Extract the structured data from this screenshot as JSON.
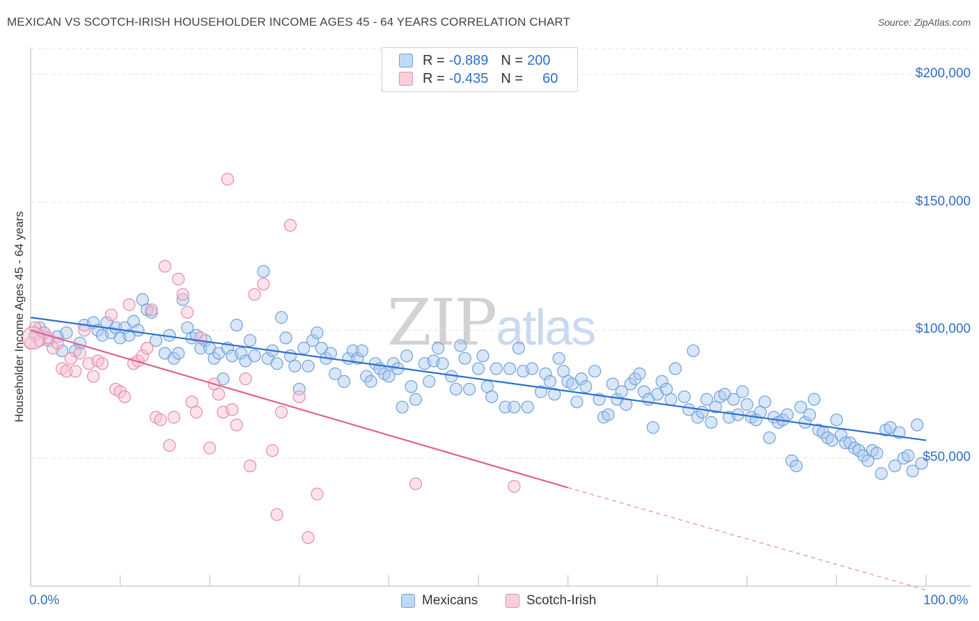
{
  "title": "MEXICAN VS SCOTCH-IRISH HOUSEHOLDER INCOME AGES 45 - 64 YEARS CORRELATION CHART",
  "source": "Source: ZipAtlas.com",
  "watermark": {
    "zip": "ZIP",
    "atlas": "atlas"
  },
  "legend": {
    "rows": [
      {
        "r_label": "R = ",
        "r_value": "-0.889",
        "n_label": "N = ",
        "n_value": "200",
        "color": "#a8c8f0",
        "border": "#6fa0dc"
      },
      {
        "r_label": "R = ",
        "r_value": "-0.435",
        "n_label": "N = ",
        "n_value": "60",
        "color": "#f6c2d2",
        "border": "#e88aa8"
      }
    ]
  },
  "bottom_legend": [
    {
      "label": "Mexicans",
      "color": "#a8c8f0",
      "border": "#6fa0dc"
    },
    {
      "label": "Scotch-Irish",
      "color": "#f6c2d2",
      "border": "#e88aa8"
    }
  ],
  "chart_data": {
    "type": "scatter",
    "ylabel": "Householder Income Ages 45 - 64 years",
    "xlabel": "",
    "xlim": [
      0,
      100
    ],
    "ylim": [
      0,
      210000
    ],
    "x_tick_labels": [
      "0.0%",
      "100.0%"
    ],
    "y_ticks": [
      50000,
      100000,
      150000,
      200000
    ],
    "y_tick_labels": [
      "$50,000",
      "$100,000",
      "$150,000",
      "$200,000"
    ],
    "grid": "dashed horizontal",
    "legend_position": "top-center",
    "series": [
      {
        "name": "Mexicans",
        "color": "#6fa0dc",
        "fill": "rgba(168,200,240,0.45)",
        "trend": {
          "x0": 0,
          "y0": 105000,
          "x1": 100,
          "y1": 57000,
          "dashed_after": null
        },
        "points": [
          [
            0.5,
            98000
          ],
          [
            1,
            101000
          ],
          [
            1.5,
            99000
          ],
          [
            2,
            96000
          ],
          [
            3,
            97500
          ],
          [
            3.5,
            92000
          ],
          [
            4,
            99000
          ],
          [
            5,
            92000
          ],
          [
            5.5,
            95000
          ],
          [
            6,
            102000
          ],
          [
            7,
            103000
          ],
          [
            7.5,
            100000
          ],
          [
            8,
            98000
          ],
          [
            8.5,
            103000
          ],
          [
            9,
            99000
          ],
          [
            9.5,
            101000
          ],
          [
            10,
            97000
          ],
          [
            10.5,
            101000
          ],
          [
            11,
            98000
          ],
          [
            11.5,
            103500
          ],
          [
            12,
            100000
          ],
          [
            12.5,
            112000
          ],
          [
            13,
            108000
          ],
          [
            13.5,
            107000
          ],
          [
            14,
            96000
          ],
          [
            15,
            91000
          ],
          [
            15.5,
            98000
          ],
          [
            16,
            89000
          ],
          [
            16.5,
            91000
          ],
          [
            17,
            112000
          ],
          [
            17.5,
            101000
          ],
          [
            18,
            97000
          ],
          [
            18.5,
            98000
          ],
          [
            19,
            93000
          ],
          [
            19.5,
            96000
          ],
          [
            20,
            93000
          ],
          [
            20.5,
            89000
          ],
          [
            21,
            91000
          ],
          [
            21.5,
            81000
          ],
          [
            22,
            93000
          ],
          [
            22.5,
            90000
          ],
          [
            23,
            102000
          ],
          [
            23.5,
            91000
          ],
          [
            24,
            88000
          ],
          [
            24.5,
            96000
          ],
          [
            25,
            90000
          ],
          [
            26,
            123000
          ],
          [
            26.5,
            89000
          ],
          [
            27,
            92000
          ],
          [
            27.5,
            87000
          ],
          [
            28,
            105000
          ],
          [
            28.5,
            97000
          ],
          [
            29,
            90000
          ],
          [
            29.5,
            86000
          ],
          [
            30,
            77000
          ],
          [
            30.5,
            93000
          ],
          [
            31,
            86000
          ],
          [
            31.5,
            96000
          ],
          [
            32,
            99000
          ],
          [
            32.5,
            93000
          ],
          [
            33,
            89000
          ],
          [
            33.5,
            91000
          ],
          [
            34,
            83000
          ],
          [
            35,
            80000
          ],
          [
            35.5,
            89000
          ],
          [
            36,
            92000
          ],
          [
            36.5,
            89000
          ],
          [
            37,
            92000
          ],
          [
            37.5,
            82000
          ],
          [
            38,
            80000
          ],
          [
            38.5,
            87000
          ],
          [
            39,
            85000
          ],
          [
            39.5,
            83000
          ],
          [
            40,
            82000
          ],
          [
            40.5,
            87000
          ],
          [
            41,
            85000
          ],
          [
            41.5,
            70000
          ],
          [
            42,
            90000
          ],
          [
            42.5,
            78000
          ],
          [
            43,
            73000
          ],
          [
            44,
            87000
          ],
          [
            44.5,
            80000
          ],
          [
            45,
            88000
          ],
          [
            45.5,
            93000
          ],
          [
            46,
            87000
          ],
          [
            47,
            82000
          ],
          [
            47.5,
            77000
          ],
          [
            48,
            94000
          ],
          [
            48.5,
            89000
          ],
          [
            49,
            77000
          ],
          [
            50,
            85000
          ],
          [
            50.5,
            90000
          ],
          [
            51,
            78000
          ],
          [
            51.5,
            74000
          ],
          [
            52,
            85000
          ],
          [
            53,
            70000
          ],
          [
            53.5,
            85000
          ],
          [
            54,
            70000
          ],
          [
            54.5,
            93000
          ],
          [
            55,
            84000
          ],
          [
            55.5,
            70000
          ],
          [
            56,
            85000
          ],
          [
            57,
            76000
          ],
          [
            57.5,
            83000
          ],
          [
            58,
            80000
          ],
          [
            58.5,
            75000
          ],
          [
            59,
            89000
          ],
          [
            59.5,
            84000
          ],
          [
            60,
            80000
          ],
          [
            60.5,
            79000
          ],
          [
            61,
            72000
          ],
          [
            61.5,
            81000
          ],
          [
            62,
            78000
          ],
          [
            63,
            84000
          ],
          [
            63.5,
            73000
          ],
          [
            64,
            66000
          ],
          [
            64.5,
            67000
          ],
          [
            65,
            79000
          ],
          [
            65.5,
            73000
          ],
          [
            66,
            76000
          ],
          [
            66.5,
            71000
          ],
          [
            67,
            79000
          ],
          [
            67.5,
            81000
          ],
          [
            68,
            83000
          ],
          [
            68.5,
            76000
          ],
          [
            69,
            73000
          ],
          [
            69.5,
            62000
          ],
          [
            70,
            75000
          ],
          [
            70.5,
            80000
          ],
          [
            71,
            77000
          ],
          [
            71.5,
            73000
          ],
          [
            72,
            85000
          ],
          [
            73,
            74000
          ],
          [
            73.5,
            69000
          ],
          [
            74,
            92000
          ],
          [
            74.5,
            66000
          ],
          [
            75,
            68000
          ],
          [
            75.5,
            73000
          ],
          [
            76,
            64000
          ],
          [
            76.5,
            70000
          ],
          [
            77,
            74000
          ],
          [
            77.5,
            75000
          ],
          [
            78,
            66000
          ],
          [
            78.5,
            73000
          ],
          [
            79,
            67000
          ],
          [
            79.5,
            76000
          ],
          [
            80,
            71000
          ],
          [
            80.5,
            66000
          ],
          [
            81,
            65000
          ],
          [
            81.5,
            68000
          ],
          [
            82,
            72000
          ],
          [
            82.5,
            58000
          ],
          [
            83,
            66000
          ],
          [
            83.5,
            64000
          ],
          [
            84,
            65000
          ],
          [
            84.5,
            67000
          ],
          [
            85,
            49000
          ],
          [
            85.5,
            47000
          ],
          [
            86,
            70000
          ],
          [
            86.5,
            64000
          ],
          [
            87,
            67000
          ],
          [
            87.5,
            73000
          ],
          [
            88,
            61000
          ],
          [
            88.5,
            60000
          ],
          [
            89,
            58000
          ],
          [
            89.5,
            57000
          ],
          [
            90,
            65000
          ],
          [
            90.5,
            59000
          ],
          [
            91,
            56000
          ],
          [
            91.5,
            56000
          ],
          [
            92,
            54000
          ],
          [
            92.5,
            53000
          ],
          [
            93,
            51000
          ],
          [
            93.5,
            49000
          ],
          [
            94,
            53000
          ],
          [
            94.5,
            52000
          ],
          [
            95,
            44000
          ],
          [
            95.5,
            61000
          ],
          [
            96,
            62000
          ],
          [
            96.5,
            47000
          ],
          [
            97,
            60000
          ],
          [
            97.5,
            50000
          ],
          [
            98,
            51000
          ],
          [
            98.5,
            45000
          ],
          [
            99,
            63000
          ],
          [
            99.5,
            48000
          ]
        ]
      },
      {
        "name": "Scotch-Irish",
        "color": "#e88aa8",
        "fill": "rgba(246,194,210,0.45)",
        "trend": {
          "x0": 0,
          "y0": 100000,
          "x1": 60,
          "y1": 38500,
          "dashed_to_x": 100,
          "dashed_to_y": -1500
        },
        "points": [
          [
            0,
            95000
          ],
          [
            0.5,
            101000
          ],
          [
            1,
            96000
          ],
          [
            1.5,
            99000
          ],
          [
            2,
            97000
          ],
          [
            2.5,
            93000
          ],
          [
            3,
            95000
          ],
          [
            3.5,
            85000
          ],
          [
            4,
            84000
          ],
          [
            4.5,
            89000
          ],
          [
            5,
            84000
          ],
          [
            5.5,
            91000
          ],
          [
            6,
            100000
          ],
          [
            6.5,
            87000
          ],
          [
            7,
            82000
          ],
          [
            7.5,
            88000
          ],
          [
            8,
            87000
          ],
          [
            9,
            106000
          ],
          [
            9.5,
            77000
          ],
          [
            10,
            76000
          ],
          [
            10.5,
            74000
          ],
          [
            11,
            110000
          ],
          [
            11.5,
            87000
          ],
          [
            12,
            88000
          ],
          [
            12.5,
            90000
          ],
          [
            13,
            93000
          ],
          [
            13.5,
            108000
          ],
          [
            14,
            66000
          ],
          [
            14.5,
            65000
          ],
          [
            15,
            125000
          ],
          [
            15.5,
            55000
          ],
          [
            16,
            66000
          ],
          [
            16.5,
            120000
          ],
          [
            17,
            114000
          ],
          [
            17.5,
            107000
          ],
          [
            18,
            72000
          ],
          [
            18.5,
            68000
          ],
          [
            19,
            97000
          ],
          [
            20,
            54000
          ],
          [
            20.5,
            79000
          ],
          [
            21,
            75000
          ],
          [
            21.5,
            68000
          ],
          [
            22,
            159000
          ],
          [
            22.5,
            69000
          ],
          [
            23,
            63000
          ],
          [
            24,
            81000
          ],
          [
            24.5,
            47000
          ],
          [
            25,
            114000
          ],
          [
            26,
            118000
          ],
          [
            27,
            53000
          ],
          [
            27.5,
            28000
          ],
          [
            28,
            68000
          ],
          [
            29,
            141000
          ],
          [
            30,
            74000
          ],
          [
            31,
            19000
          ],
          [
            32,
            36000
          ],
          [
            43,
            40000
          ],
          [
            54,
            39000
          ]
        ]
      }
    ]
  }
}
